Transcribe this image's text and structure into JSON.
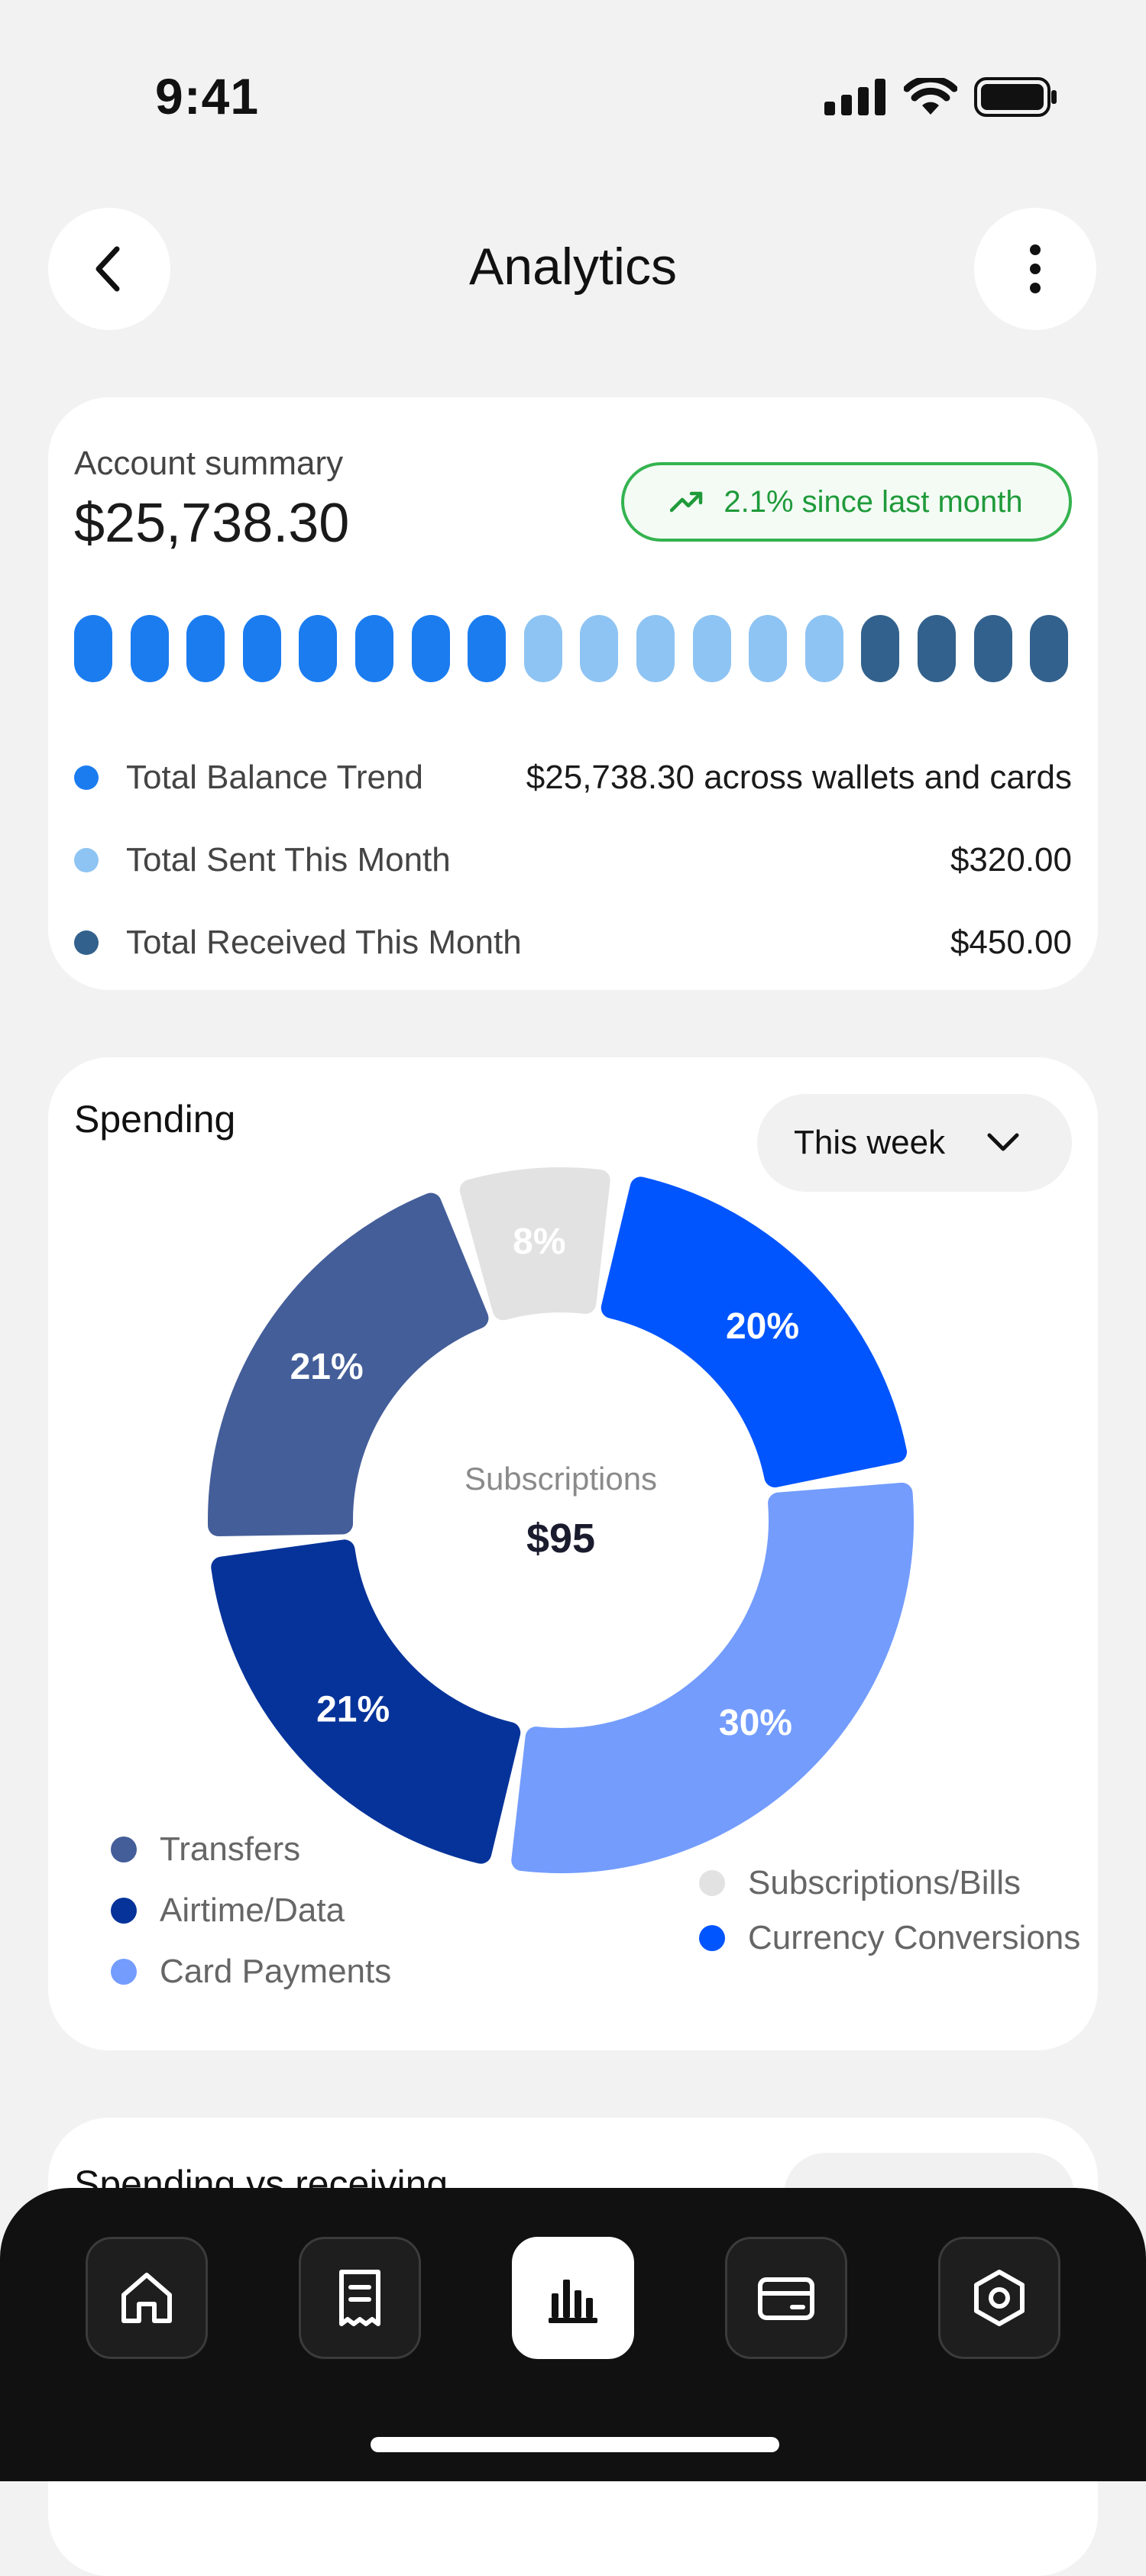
{
  "status_bar": {
    "time": "9:41",
    "icons": [
      "signal-icon",
      "wifi-icon",
      "battery-icon"
    ]
  },
  "header": {
    "title": "Analytics",
    "back_icon": "chevron-left-icon",
    "more_icon": "more-vertical-icon"
  },
  "summary": {
    "label": "Account summary",
    "amount": "$25,738.30",
    "growth_badge": "2.1% since last month",
    "growth_icon": "trending-up-icon",
    "bar_colors": [
      "#1b7cf0",
      "#1b7cf0",
      "#1b7cf0",
      "#1b7cf0",
      "#1b7cf0",
      "#1b7cf0",
      "#1b7cf0",
      "#1b7cf0",
      "#8ec4f3",
      "#8ec4f3",
      "#8ec4f3",
      "#8ec4f3",
      "#8ec4f3",
      "#8ec4f3",
      "#32618d",
      "#32618d",
      "#32618d",
      "#32618d"
    ],
    "legend": [
      {
        "label": "Total Balance Trend",
        "value": "$25,738.30 across wallets and cards",
        "color": "#1b7cf0"
      },
      {
        "label": "Total Sent This Month",
        "value": "$320.00",
        "color": "#8ec4f3"
      },
      {
        "label": "Total Received This Month",
        "value": "$450.00",
        "color": "#32618d"
      }
    ]
  },
  "spending": {
    "title": "Spending",
    "period": "This week",
    "center_label": "Subscriptions",
    "center_value": "$95",
    "chart_data": {
      "type": "pie",
      "slices": [
        {
          "label": "Currency Conversions",
          "percent": 20,
          "color": "#0055ff"
        },
        {
          "label": "Card Payments",
          "percent": 30,
          "color": "#739cfd"
        },
        {
          "label": "Airtime/Data",
          "percent": 21,
          "color": "#06339a"
        },
        {
          "label": "Transfers",
          "percent": 21,
          "color": "#445e99"
        },
        {
          "label": "Subscriptions/Bills",
          "percent": 8,
          "color": "#e2e2e2"
        }
      ]
    },
    "legend_left": [
      {
        "label": "Transfers",
        "color": "#445e99"
      },
      {
        "label": "Airtime/Data",
        "color": "#06339a"
      },
      {
        "label": "Card Payments",
        "color": "#739cfd"
      }
    ],
    "legend_right": [
      {
        "label": "Subscriptions/Bills",
        "color": "#e2e2e2"
      },
      {
        "label": "Currency Conversions",
        "color": "#0055ff"
      }
    ]
  },
  "spending_vs_receiving": {
    "title": "Spending vs receiving"
  },
  "tabbar": {
    "tabs": [
      {
        "name": "home-icon",
        "active": false
      },
      {
        "name": "receipt-icon",
        "active": false
      },
      {
        "name": "bar-chart-icon",
        "active": true
      },
      {
        "name": "wallet-icon",
        "active": false
      },
      {
        "name": "settings-icon",
        "active": false
      }
    ]
  }
}
